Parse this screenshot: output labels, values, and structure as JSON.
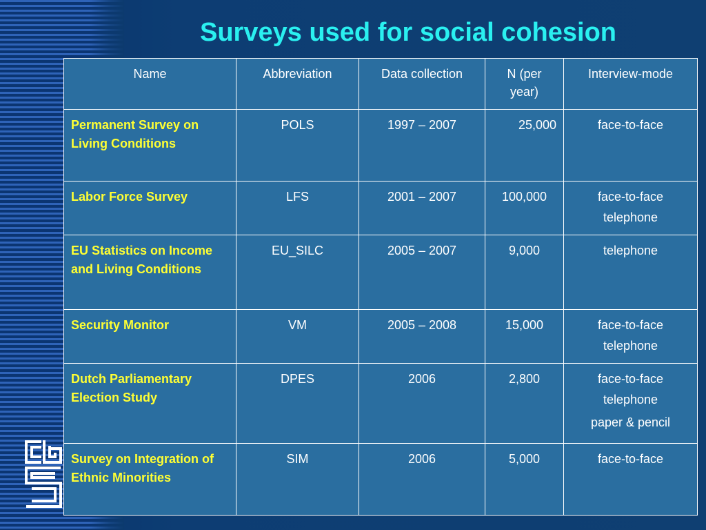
{
  "title": "Surveys used for social cohesion",
  "table": {
    "headers": [
      "Name",
      "Abbreviation",
      "Data collection",
      "N (per year)",
      "Interview-mode"
    ],
    "rows": [
      {
        "name": "Permanent Survey on Living Conditions",
        "abbreviation": "POLS",
        "data_collection": "1997 – 2007",
        "n": "25,000",
        "modes": [
          "face-to-face"
        ]
      },
      {
        "name": "Labor Force Survey",
        "abbreviation": "LFS",
        "data_collection": "2001 – 2007",
        "n": "100,000",
        "modes": [
          "face-to-face",
          "telephone"
        ]
      },
      {
        "name": "EU Statistics on Income and Living Conditions",
        "abbreviation": "EU_SILC",
        "data_collection": "2005 – 2007",
        "n": "9,000",
        "modes": [
          "telephone"
        ]
      },
      {
        "name": "Security Monitor",
        "abbreviation": "VM",
        "data_collection": "2005 – 2008",
        "n": "15,000",
        "modes": [
          "face-to-face",
          "telephone"
        ]
      },
      {
        "name": "Dutch Parliamentary Election Study",
        "abbreviation": "DPES",
        "data_collection": "2006",
        "n": "2,800",
        "modes": [
          "face-to-face",
          "telephone",
          "paper & pencil"
        ]
      },
      {
        "name": "Survey on Integration of Ethnic Minorities",
        "abbreviation": "SIM",
        "data_collection": "2006",
        "n": "5,000",
        "modes": [
          "face-to-face"
        ]
      }
    ]
  },
  "logo": {
    "icon": "cbs-logo-icon",
    "color": "#ffffff"
  },
  "colors": {
    "background": "#0c3a6e",
    "title": "#2af0f0",
    "table_fill": "#2a6ea0",
    "name_text": "#ffff33",
    "cell_text": "#ffffff"
  }
}
